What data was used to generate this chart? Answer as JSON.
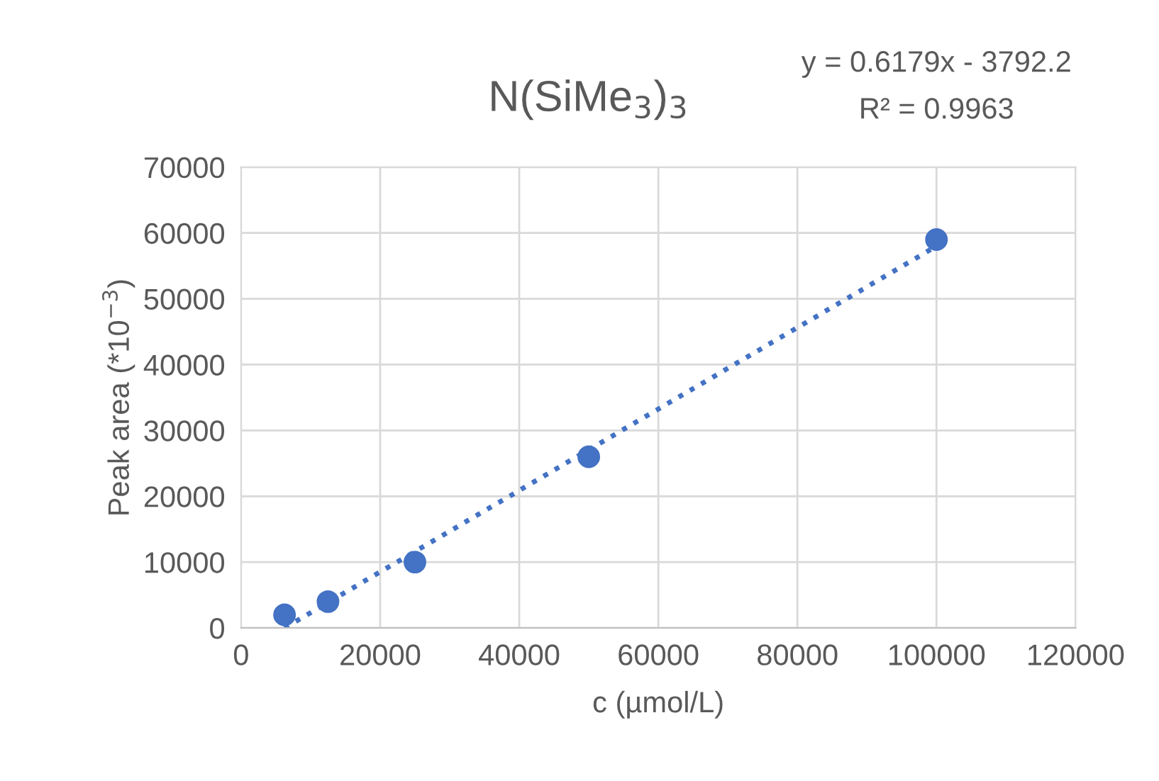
{
  "chart_data": {
    "type": "scatter",
    "title": "N(SiMe$_{3}$)$_{3}$",
    "xlabel": "c (µmol/L)",
    "ylabel": "Peak area (*10$^{−3}$)",
    "annotations": [
      "y = 0.6179x - 3792.2",
      "R² = 0.9963"
    ],
    "series": [
      {
        "type": "scatter",
        "color": "#4472c4",
        "marker": "circle",
        "x": [
          6250,
          12500,
          25000,
          50000,
          100000
        ],
        "values": [
          2000,
          4000,
          10000,
          26000,
          59000
        ]
      },
      {
        "type": "line",
        "color": "#4472c4",
        "marker": "none",
        "line_style": "dotted",
        "x": [
          6250,
          100000
        ],
        "values": [
          0,
          58000
        ]
      }
    ],
    "xlim": [
      0,
      120000
    ],
    "xticks": [
      0,
      20000,
      40000,
      60000,
      80000,
      100000,
      120000
    ],
    "ylim": [
      0,
      70000
    ],
    "yticks": [
      0,
      10000,
      20000,
      30000,
      40000,
      50000,
      60000,
      70000
    ],
    "grid": true,
    "legend": false
  }
}
